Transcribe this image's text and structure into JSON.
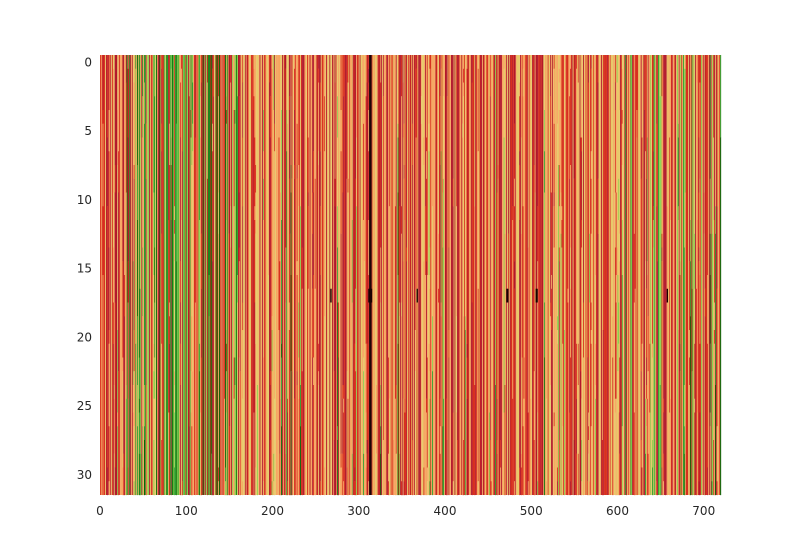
{
  "chart_data": {
    "type": "heatmap",
    "title": "",
    "xlabel": "",
    "ylabel": "",
    "n_cols": 720,
    "n_rows": 32,
    "xlim": [
      0,
      720
    ],
    "ylim": [
      31.5,
      -0.5
    ],
    "x_ticks": [
      0,
      100,
      200,
      300,
      400,
      500,
      600,
      700
    ],
    "y_ticks": [
      0,
      5,
      10,
      15,
      20,
      25,
      30
    ],
    "x_tick_labels": [
      "0",
      "100",
      "200",
      "300",
      "400",
      "500",
      "600",
      "700"
    ],
    "y_tick_labels": [
      "0",
      "5",
      "10",
      "15",
      "20",
      "25",
      "30"
    ],
    "colormap": [
      "#006400",
      "#2ca02c",
      "#8fd14f",
      "#e8c96a",
      "#f6a55f",
      "#d7301f",
      "#b2182b"
    ],
    "dark_color": "#1a0000",
    "dark_stripe_cols": [
      312,
      313,
      314
    ],
    "dark_row": 17,
    "dark_row_cols": [
      267,
      311,
      312,
      313,
      314,
      367,
      471,
      472,
      505,
      506,
      657
    ],
    "grid": false,
    "legend": "none"
  }
}
